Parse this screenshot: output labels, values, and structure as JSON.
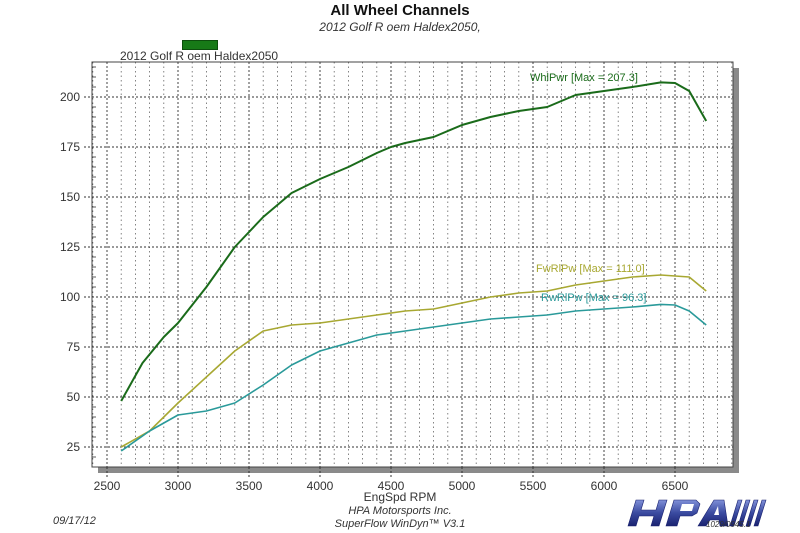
{
  "header": {
    "title": "All Wheel Channels",
    "subtitle": "2012 Golf R oem Haldex2050,"
  },
  "legend": {
    "label": "2012 Golf R oem Haldex2050",
    "swatch_color": "#177a17"
  },
  "footer": {
    "date": "09/17/12",
    "company": "HPA Motorsports Inc.",
    "software": "SuperFlow WinDyn™ V3.1",
    "logo_text": "HPA",
    "logo_code": "1029/0945.1"
  },
  "colors": {
    "WhlPwr": "#1a6b1a",
    "FwRlPw": "#a8a832",
    "RwRlPw": "#2a9a9a",
    "grid": "#333333",
    "frame_shadow": "#8a8a8a",
    "logo": "#3a4aa0"
  },
  "chart_data": {
    "type": "line",
    "title": "All Wheel Channels",
    "subtitle": "2012 Golf R oem Haldex2050,",
    "xlabel": "EngSpd RPM",
    "ylabel": "",
    "xlim": [
      2400,
      6900
    ],
    "ylim": [
      15,
      215
    ],
    "x_ticks": [
      2500,
      3000,
      3500,
      4000,
      4500,
      5000,
      5500,
      6000,
      6500
    ],
    "y_ticks": [
      25,
      50,
      75,
      100,
      125,
      150,
      175,
      200
    ],
    "grid": true,
    "legend": [
      "2012 Golf R oem Haldex2050"
    ],
    "legend_position": "top-left",
    "series": [
      {
        "name": "WhlPwr",
        "label": "WhlPwr [Max = 207.3]",
        "max": 207.3,
        "x": [
          2600,
          2750,
          2900,
          3000,
          3200,
          3400,
          3600,
          3800,
          4000,
          4200,
          4400,
          4500,
          4600,
          4800,
          5000,
          5200,
          5400,
          5600,
          5800,
          6000,
          6200,
          6400,
          6500,
          6600,
          6720
        ],
        "values": [
          48,
          67,
          80,
          87,
          105,
          125,
          140,
          152,
          159,
          165,
          172,
          175,
          177,
          180,
          186,
          190,
          193,
          195,
          201,
          203,
          205,
          207.3,
          207,
          203,
          188
        ]
      },
      {
        "name": "FwRlPw",
        "label": "FwRlPw [Max = 111.0]",
        "max": 111.0,
        "x": [
          2600,
          2800,
          3000,
          3200,
          3400,
          3600,
          3800,
          4000,
          4200,
          4400,
          4600,
          4800,
          5000,
          5200,
          5400,
          5600,
          5800,
          6000,
          6200,
          6400,
          6600,
          6720
        ],
        "values": [
          25,
          33,
          47,
          60,
          73,
          83,
          86,
          87,
          89,
          91,
          93,
          94,
          97,
          100,
          102,
          103,
          106,
          108,
          110,
          111,
          110,
          103
        ]
      },
      {
        "name": "RwRlPw",
        "label": "RwRlPw [Max = 96.3]",
        "max": 96.3,
        "x": [
          2600,
          2800,
          3000,
          3200,
          3400,
          3600,
          3800,
          4000,
          4200,
          4400,
          4600,
          4800,
          5000,
          5200,
          5400,
          5600,
          5800,
          6000,
          6200,
          6400,
          6500,
          6600,
          6720
        ],
        "values": [
          23,
          33,
          41,
          43,
          47,
          56,
          66,
          73,
          77,
          81,
          83,
          85,
          87,
          89,
          90,
          91,
          93,
          94,
          95,
          96.3,
          96,
          93,
          86
        ]
      }
    ]
  }
}
